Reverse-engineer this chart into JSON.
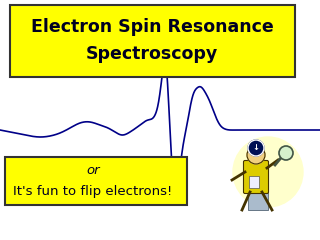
{
  "title_line1": "Electron Spin Resonance",
  "title_line2": "Spectroscopy",
  "subtitle_line1": "or",
  "subtitle_line2": "It's fun to flip electrons!",
  "bg_color": "#ffffff",
  "box_color": "#ffff00",
  "box_edge_color": "#333333",
  "text_color": "#000022",
  "line_color": "#000088",
  "title_fontsize": 12.5,
  "sub_fontsize": 9.5
}
